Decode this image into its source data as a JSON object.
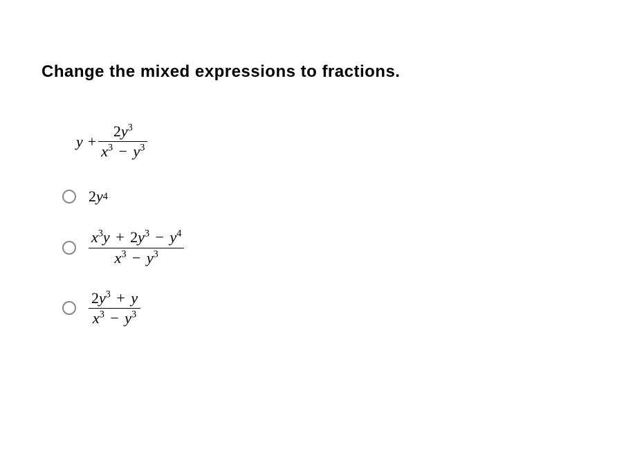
{
  "question": {
    "title": "Change the mixed expressions to fractions.",
    "title_fontsize": 24,
    "title_weight": 700,
    "title_color": "#000000"
  },
  "expression": {
    "lead": "y",
    "plus": "+",
    "numerator_coeff": "2",
    "numerator_var": "y",
    "numerator_exp": "3",
    "denominator": {
      "t1_var": "x",
      "t1_exp": "3",
      "minus": "−",
      "t2_var": "y",
      "t2_exp": "3"
    }
  },
  "options": [
    {
      "id": "opt-a",
      "coeff": "2",
      "var": "y",
      "exp": "4"
    },
    {
      "id": "opt-b",
      "num": {
        "t1_var": "x",
        "t1_exp": "3",
        "t1_tail": "y",
        "plus": "+",
        "t2_coeff": "2",
        "t2_var": "y",
        "t2_exp": "3",
        "minus": "−",
        "t3_var": "y",
        "t3_exp": "4"
      },
      "den": {
        "t1_var": "x",
        "t1_exp": "3",
        "minus": "−",
        "t2_var": "y",
        "t2_exp": "3"
      }
    },
    {
      "id": "opt-c",
      "num": {
        "t1_coeff": "2",
        "t1_var": "y",
        "t1_exp": "3",
        "plus": "+",
        "t2_var": "y"
      },
      "den": {
        "t1_var": "x",
        "t1_exp": "3",
        "minus": "−",
        "t2_var": "y",
        "t2_exp": "3"
      }
    }
  ],
  "style": {
    "background": "#ffffff",
    "text_color": "#000000",
    "radio_border_color": "#888888",
    "math_font": "Times New Roman",
    "math_fontsize": 22
  }
}
